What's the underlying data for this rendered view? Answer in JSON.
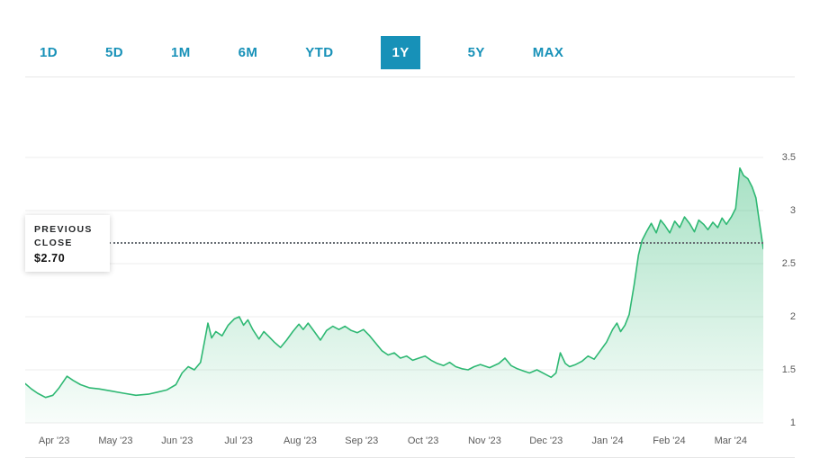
{
  "tabs": {
    "items": [
      {
        "label": "1D",
        "selected": false
      },
      {
        "label": "5D",
        "selected": false
      },
      {
        "label": "1M",
        "selected": false
      },
      {
        "label": "6M",
        "selected": false
      },
      {
        "label": "YTD",
        "selected": false
      },
      {
        "label": "1Y",
        "selected": true
      },
      {
        "label": "5Y",
        "selected": false
      },
      {
        "label": "MAX",
        "selected": false
      }
    ]
  },
  "previous_close": {
    "label": "PREVIOUS CLOSE",
    "value": "$2.70"
  },
  "colors": {
    "tab_teal": "#1791b8",
    "line_green": "#2eb873",
    "fill_top": "rgba(46,184,115,0.42)",
    "fill_bottom": "rgba(46,184,115,0.03)",
    "gridline": "#ededed",
    "axis_text": "#5a5a5a",
    "dotted": "#676d73"
  },
  "chart_data": {
    "type": "area",
    "title": "1-year stock price area chart",
    "xlabel": "",
    "ylabel": "",
    "grid": true,
    "legend": false,
    "ylim": [
      1,
      3.5
    ],
    "yticks": [
      1,
      1.5,
      2,
      2.5,
      3,
      3.5
    ],
    "xlim": [
      0,
      12
    ],
    "xticks": [
      {
        "x": 0.47,
        "label": "Apr '23"
      },
      {
        "x": 1.47,
        "label": "May '23"
      },
      {
        "x": 2.47,
        "label": "Jun '23"
      },
      {
        "x": 3.47,
        "label": "Jul '23"
      },
      {
        "x": 4.47,
        "label": "Aug '23"
      },
      {
        "x": 5.47,
        "label": "Sep '23"
      },
      {
        "x": 6.47,
        "label": "Oct '23"
      },
      {
        "x": 7.47,
        "label": "Nov '23"
      },
      {
        "x": 8.47,
        "label": "Dec '23"
      },
      {
        "x": 9.47,
        "label": "Jan '24"
      },
      {
        "x": 10.47,
        "label": "Feb '24"
      },
      {
        "x": 11.47,
        "label": "Mar '24"
      }
    ],
    "previous_close": 2.7,
    "series": [
      {
        "name": "price",
        "points": [
          [
            0.0,
            1.37
          ],
          [
            0.1,
            1.32
          ],
          [
            0.2,
            1.28
          ],
          [
            0.33,
            1.24
          ],
          [
            0.45,
            1.26
          ],
          [
            0.55,
            1.33
          ],
          [
            0.68,
            1.44
          ],
          [
            0.78,
            1.4
          ],
          [
            0.9,
            1.36
          ],
          [
            1.05,
            1.33
          ],
          [
            1.2,
            1.32
          ],
          [
            1.4,
            1.3
          ],
          [
            1.6,
            1.28
          ],
          [
            1.8,
            1.26
          ],
          [
            2.0,
            1.27
          ],
          [
            2.15,
            1.29
          ],
          [
            2.3,
            1.31
          ],
          [
            2.45,
            1.36
          ],
          [
            2.55,
            1.47
          ],
          [
            2.65,
            1.53
          ],
          [
            2.75,
            1.5
          ],
          [
            2.85,
            1.57
          ],
          [
            2.92,
            1.78
          ],
          [
            2.97,
            1.94
          ],
          [
            3.03,
            1.8
          ],
          [
            3.1,
            1.86
          ],
          [
            3.2,
            1.82
          ],
          [
            3.3,
            1.92
          ],
          [
            3.4,
            1.98
          ],
          [
            3.48,
            2.0
          ],
          [
            3.55,
            1.92
          ],
          [
            3.62,
            1.97
          ],
          [
            3.7,
            1.88
          ],
          [
            3.8,
            1.79
          ],
          [
            3.88,
            1.86
          ],
          [
            3.95,
            1.82
          ],
          [
            4.05,
            1.76
          ],
          [
            4.15,
            1.71
          ],
          [
            4.25,
            1.78
          ],
          [
            4.35,
            1.86
          ],
          [
            4.45,
            1.93
          ],
          [
            4.52,
            1.88
          ],
          [
            4.6,
            1.94
          ],
          [
            4.7,
            1.86
          ],
          [
            4.8,
            1.78
          ],
          [
            4.9,
            1.87
          ],
          [
            5.0,
            1.91
          ],
          [
            5.1,
            1.88
          ],
          [
            5.2,
            1.91
          ],
          [
            5.3,
            1.87
          ],
          [
            5.4,
            1.85
          ],
          [
            5.5,
            1.88
          ],
          [
            5.6,
            1.82
          ],
          [
            5.7,
            1.75
          ],
          [
            5.8,
            1.68
          ],
          [
            5.9,
            1.64
          ],
          [
            6.0,
            1.66
          ],
          [
            6.1,
            1.61
          ],
          [
            6.2,
            1.63
          ],
          [
            6.3,
            1.59
          ],
          [
            6.4,
            1.61
          ],
          [
            6.5,
            1.63
          ],
          [
            6.6,
            1.59
          ],
          [
            6.7,
            1.56
          ],
          [
            6.8,
            1.54
          ],
          [
            6.9,
            1.57
          ],
          [
            7.0,
            1.53
          ],
          [
            7.1,
            1.51
          ],
          [
            7.2,
            1.5
          ],
          [
            7.3,
            1.53
          ],
          [
            7.4,
            1.55
          ],
          [
            7.55,
            1.52
          ],
          [
            7.7,
            1.56
          ],
          [
            7.8,
            1.61
          ],
          [
            7.9,
            1.54
          ],
          [
            8.0,
            1.51
          ],
          [
            8.1,
            1.49
          ],
          [
            8.2,
            1.47
          ],
          [
            8.32,
            1.5
          ],
          [
            8.45,
            1.46
          ],
          [
            8.55,
            1.43
          ],
          [
            8.63,
            1.47
          ],
          [
            8.7,
            1.66
          ],
          [
            8.78,
            1.56
          ],
          [
            8.85,
            1.53
          ],
          [
            8.95,
            1.55
          ],
          [
            9.05,
            1.58
          ],
          [
            9.15,
            1.63
          ],
          [
            9.25,
            1.6
          ],
          [
            9.35,
            1.68
          ],
          [
            9.45,
            1.76
          ],
          [
            9.55,
            1.88
          ],
          [
            9.62,
            1.94
          ],
          [
            9.68,
            1.86
          ],
          [
            9.75,
            1.92
          ],
          [
            9.82,
            2.02
          ],
          [
            9.9,
            2.3
          ],
          [
            9.97,
            2.58
          ],
          [
            10.03,
            2.72
          ],
          [
            10.1,
            2.8
          ],
          [
            10.18,
            2.88
          ],
          [
            10.26,
            2.79
          ],
          [
            10.33,
            2.91
          ],
          [
            10.4,
            2.86
          ],
          [
            10.48,
            2.79
          ],
          [
            10.56,
            2.9
          ],
          [
            10.64,
            2.84
          ],
          [
            10.72,
            2.94
          ],
          [
            10.8,
            2.88
          ],
          [
            10.88,
            2.8
          ],
          [
            10.95,
            2.91
          ],
          [
            11.03,
            2.87
          ],
          [
            11.1,
            2.82
          ],
          [
            11.18,
            2.89
          ],
          [
            11.26,
            2.84
          ],
          [
            11.33,
            2.93
          ],
          [
            11.4,
            2.87
          ],
          [
            11.48,
            2.94
          ],
          [
            11.55,
            3.02
          ],
          [
            11.62,
            3.4
          ],
          [
            11.68,
            3.33
          ],
          [
            11.75,
            3.3
          ],
          [
            11.82,
            3.22
          ],
          [
            11.88,
            3.12
          ],
          [
            11.94,
            2.88
          ],
          [
            12.0,
            2.64
          ]
        ]
      }
    ]
  }
}
